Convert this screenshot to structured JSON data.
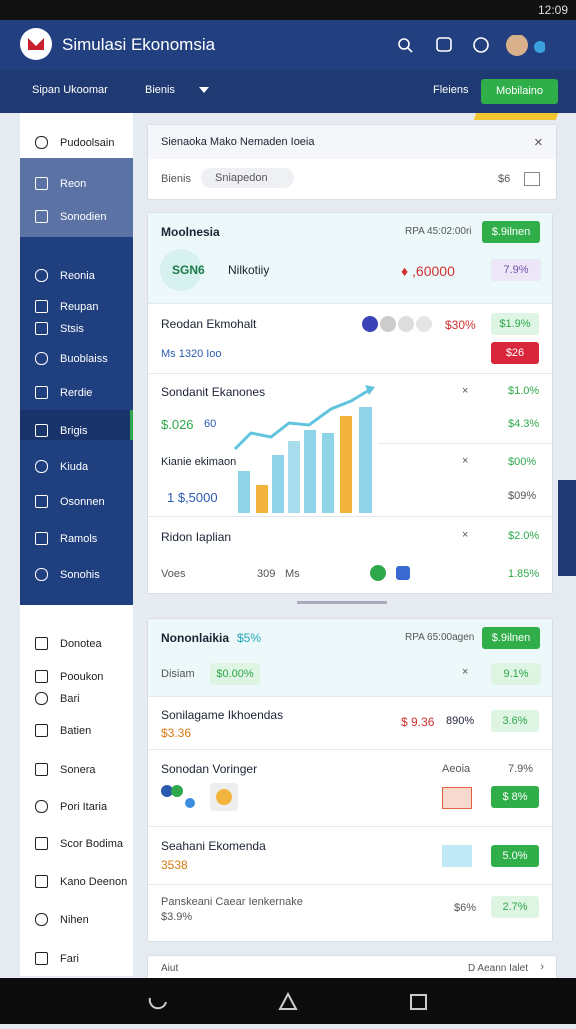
{
  "status_bar": {
    "time": "12:09"
  },
  "header": {
    "title": "Simulasi Ekonomsia"
  },
  "toolbar": {
    "left": "Sipan Ukoomar",
    "dropdown": "Bienis",
    "right": "Fleiens",
    "button": "Mobilaino"
  },
  "sidebar": {
    "items": [
      "Pudoolsain",
      "Reon",
      "Sonodien",
      "Reonia",
      "Reupan",
      "Stsis",
      "Buoblaiss",
      "Rerdie",
      "Brigis",
      "Kiuda",
      "Osonnen",
      "Ramols",
      "Sonohis",
      "Donotea",
      "Pooukon",
      "Bari",
      "Batien",
      "Sonera",
      "Pori Itaria",
      "Scor Bodima",
      "Kano Deenon",
      "Nihen",
      "Fari"
    ]
  },
  "filter_card": {
    "title": "Sienaoka Mako Nemaden Ioeia",
    "label": "Bienis",
    "chip": "Sniapedon",
    "value": "$6"
  },
  "market_card": {
    "title": "Moolnesia",
    "meta": "RPA 45:02:00ri",
    "badge": "$.9ilnen",
    "logo": "SGN6",
    "name": "Nilkotiiy",
    "price": "♦ ,60000",
    "change": "7.9%",
    "row1": {
      "title": "Reodan Ekmohalt",
      "value": "$30%",
      "change": "$1.9%",
      "sub": "Ms 1320 Ioo",
      "badge": "$26"
    },
    "row2": {
      "title": "Sondanit Ekanones",
      "change": "$1.0%",
      "sub_a": "$.026",
      "sub_b": "60",
      "change2": "$4.3%"
    },
    "row3": {
      "title": "Kianie ekimaon",
      "change": "$00%",
      "sub": "1 $,5000",
      "change2": "$09%"
    },
    "row4": {
      "title": "Ridon Iaplian",
      "change": "$2.0%",
      "sub_a": "Voes",
      "sub_b": "309",
      "sub_c": "Ms",
      "change2": "1.85%"
    }
  },
  "portfolio_card": {
    "title": "Nononlaikia",
    "tag": "$5%",
    "meta": "RPA 65:00agen",
    "badge": "$.9ilnen",
    "label": "Disiam",
    "chip": "$0.00%",
    "change": "9.1%",
    "row1": {
      "title": "Sonilagame Ikhoendas",
      "sub": "$3.36",
      "value": "$ 9.36",
      "pct": "890%",
      "change": "3.6%"
    },
    "row2": {
      "title": "Sonodan Voringer",
      "meta": "Aeoia",
      "change": "7.9%",
      "badge": "$ 8%"
    },
    "row3": {
      "title": "Seahani Ekomenda",
      "sub": "3538",
      "change": "5.0%"
    },
    "row4": {
      "title": "Panskeani Caear Ienkernake",
      "sub": "$3.9%",
      "value": "$6%",
      "change": "2.7%"
    }
  },
  "footer_strip": {
    "left": "Aiut",
    "right": "D Aeann Ialet"
  }
}
